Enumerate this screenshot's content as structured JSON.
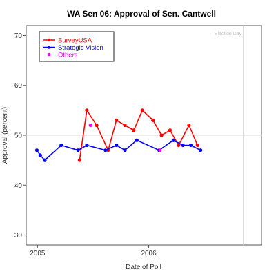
{
  "chart_data": {
    "type": "line",
    "title": "WA Sen 06: Approval of Sen. Cantwell",
    "xlabel": "Date of Poll",
    "ylabel": "Approval (percent)",
    "ylim": [
      28,
      72
    ],
    "xlim": [
      "2004-11-25",
      "2007-01-06"
    ],
    "x_ticks": [
      {
        "date": "2005-01-01",
        "label": "2005"
      },
      {
        "date": "2006-01-01",
        "label": "2006"
      }
    ],
    "y_ticks": [
      30,
      40,
      50,
      60,
      70
    ],
    "reference_line_y": 50,
    "election_day": {
      "date": "2006-11-07",
      "label": "Election Day"
    },
    "legend_position": "top-left",
    "series": [
      {
        "name": "SurveyUSA",
        "color": "#ff0000",
        "connected": true,
        "points": [
          {
            "date": "2005-05-19",
            "value": 45
          },
          {
            "date": "2005-06-12",
            "value": 55
          },
          {
            "date": "2005-07-14",
            "value": 52
          },
          {
            "date": "2005-08-21",
            "value": 47
          },
          {
            "date": "2005-09-17",
            "value": 53
          },
          {
            "date": "2005-10-15",
            "value": 52
          },
          {
            "date": "2005-11-13",
            "value": 51
          },
          {
            "date": "2005-12-11",
            "value": 55
          },
          {
            "date": "2006-01-15",
            "value": 53
          },
          {
            "date": "2006-02-12",
            "value": 50
          },
          {
            "date": "2006-03-12",
            "value": 51
          },
          {
            "date": "2006-04-09",
            "value": 48
          },
          {
            "date": "2006-05-13",
            "value": 52
          },
          {
            "date": "2006-06-10",
            "value": 48
          }
        ]
      },
      {
        "name": "Strategic Vision",
        "color": "#0000ff",
        "connected": true,
        "points": [
          {
            "date": "2004-12-30",
            "value": 47
          },
          {
            "date": "2005-01-10",
            "value": 46
          },
          {
            "date": "2005-01-25",
            "value": 45
          },
          {
            "date": "2005-03-20",
            "value": 48
          },
          {
            "date": "2005-05-14",
            "value": 47
          },
          {
            "date": "2005-06-12",
            "value": 48
          },
          {
            "date": "2005-08-12",
            "value": 47
          },
          {
            "date": "2005-09-17",
            "value": 48
          },
          {
            "date": "2005-10-15",
            "value": 47
          },
          {
            "date": "2005-11-23",
            "value": 49
          },
          {
            "date": "2006-02-04",
            "value": 47
          },
          {
            "date": "2006-03-23",
            "value": 49
          },
          {
            "date": "2006-04-23",
            "value": 48
          },
          {
            "date": "2006-05-19",
            "value": 48
          },
          {
            "date": "2006-06-20",
            "value": 47
          }
        ]
      },
      {
        "name": "Others",
        "color": "#ff00ff",
        "connected": false,
        "points": [
          {
            "date": "2005-06-24",
            "value": 52
          },
          {
            "date": "2006-02-07",
            "value": 47
          }
        ]
      }
    ]
  }
}
